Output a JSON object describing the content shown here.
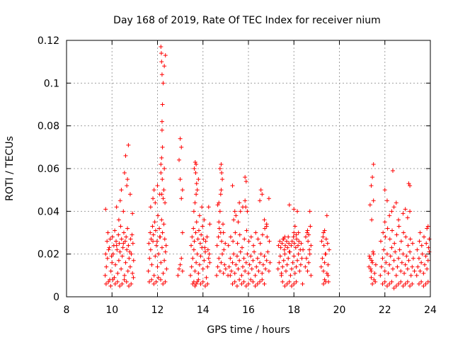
{
  "chart_data": {
    "type": "scatter",
    "title": "Day 168 of 2019, Rate Of TEC Index for receiver nium",
    "xlabel": "GPS time / hours",
    "ylabel": "ROTI / TECUs",
    "xlim": [
      8,
      24
    ],
    "ylim": [
      0,
      0.12
    ],
    "xticks": [
      8,
      10,
      12,
      14,
      16,
      18,
      20,
      22,
      24
    ],
    "yticks": [
      0,
      0.02,
      0.04,
      0.06,
      0.08,
      0.1,
      0.12
    ],
    "ytick_labels": [
      "0",
      "0.02",
      "0.04",
      "0.06",
      "0.08",
      "0.1",
      "0.12"
    ],
    "grid": true,
    "marker": "+",
    "color": "#ff0000",
    "series": [
      {
        "name": "ROTI",
        "x": [
          9.7,
          9.75,
          9.8,
          9.85,
          9.9,
          9.95,
          10.0,
          10.05,
          10.1,
          10.15,
          10.2,
          10.25,
          10.3,
          10.35,
          10.4,
          10.45,
          10.5,
          10.55,
          10.6,
          10.65,
          10.7,
          10.75,
          10.8,
          10.85,
          10.9,
          10.95,
          9.72,
          9.78,
          9.82,
          9.88,
          9.92,
          9.98,
          10.02,
          10.08,
          10.12,
          10.18,
          10.22,
          10.28,
          10.32,
          10.38,
          10.42,
          10.48,
          10.52,
          10.58,
          10.62,
          10.68,
          10.72,
          10.78,
          10.82,
          10.88,
          10.92,
          9.74,
          9.84,
          9.94,
          10.04,
          10.14,
          10.24,
          10.34,
          10.44,
          10.54,
          10.64,
          10.74,
          10.84,
          10.94,
          10.36,
          10.41,
          10.55,
          10.6,
          10.68,
          10.72,
          10.8,
          10.65,
          10.5,
          10.3,
          10.2,
          9.72,
          10.9,
          11.6,
          11.65,
          11.7,
          11.75,
          11.8,
          11.85,
          11.9,
          11.95,
          12.0,
          12.05,
          12.1,
          12.15,
          12.2,
          12.25,
          12.3,
          12.35,
          12.4,
          11.62,
          11.68,
          11.72,
          11.78,
          11.82,
          11.88,
          11.92,
          11.98,
          12.02,
          12.08,
          12.12,
          12.18,
          12.22,
          12.28,
          12.32,
          12.38,
          11.64,
          11.74,
          11.84,
          11.94,
          12.04,
          12.14,
          12.24,
          12.34,
          11.7,
          11.8,
          11.85,
          11.9,
          12.0,
          12.1,
          12.15,
          12.18,
          12.2,
          12.22,
          12.25,
          12.3,
          12.35,
          12.15,
          12.17,
          12.18,
          12.2,
          12.2,
          12.22,
          12.15,
          12.19,
          12.21,
          12.3,
          12.25,
          12.28,
          12.33,
          12.9,
          12.95,
          13.0,
          13.05,
          13.1,
          13.0,
          13.05,
          12.95,
          13.1,
          13.0,
          13.05,
          13.1,
          13.45,
          13.5,
          13.55,
          13.6,
          13.65,
          13.7,
          13.75,
          13.8,
          13.85,
          13.9,
          13.95,
          14.0,
          14.05,
          14.1,
          14.15,
          14.2,
          14.25,
          14.3,
          13.48,
          13.52,
          13.58,
          13.62,
          13.68,
          13.72,
          13.78,
          13.82,
          13.88,
          13.92,
          13.98,
          14.02,
          14.08,
          14.12,
          14.18,
          14.22,
          14.28,
          13.55,
          13.6,
          13.65,
          13.7,
          13.75,
          13.8,
          13.9,
          14.0,
          14.1,
          14.2,
          13.6,
          13.65,
          13.7,
          13.75,
          13.85,
          13.95,
          14.05,
          13.62,
          13.7,
          13.8,
          13.66,
          13.68,
          13.72,
          14.3,
          14.25,
          14.6,
          14.65,
          14.7,
          14.75,
          14.8,
          14.85,
          14.9,
          14.95,
          15.0,
          14.62,
          14.68,
          14.72,
          14.78,
          14.82,
          14.88,
          14.92,
          14.98,
          14.7,
          14.75,
          14.8,
          14.85,
          14.75,
          14.8,
          14.82,
          14.78,
          14.7,
          14.65,
          14.9,
          15.1,
          15.15,
          15.2,
          15.25,
          15.3,
          15.35,
          15.4,
          15.45,
          15.5,
          15.55,
          15.6,
          15.65,
          15.7,
          15.75,
          15.8,
          15.85,
          15.9,
          15.95,
          16.0,
          16.05,
          16.1,
          16.15,
          16.2,
          16.25,
          16.3,
          16.35,
          16.4,
          16.45,
          16.5,
          16.55,
          16.6,
          16.65,
          16.7,
          16.75,
          16.8,
          16.85,
          16.9,
          16.95,
          15.12,
          15.22,
          15.32,
          15.42,
          15.52,
          15.62,
          15.72,
          15.82,
          15.92,
          16.02,
          16.12,
          16.22,
          16.32,
          16.42,
          16.52,
          16.62,
          16.72,
          16.82,
          16.92,
          15.3,
          15.4,
          15.5,
          15.6,
          15.7,
          15.8,
          15.9,
          16.0,
          16.1,
          16.2,
          16.3,
          16.4,
          16.5,
          16.6,
          16.7,
          16.8,
          15.35,
          15.45,
          15.55,
          15.65,
          15.75,
          15.85,
          15.9,
          15.85,
          15.88,
          15.95,
          16.5,
          16.55,
          16.6,
          16.7,
          16.8,
          16.9,
          15.3,
          15.4,
          15.6,
          15.2,
          17.3,
          17.35,
          17.4,
          17.45,
          17.5,
          17.55,
          17.6,
          17.65,
          17.7,
          17.75,
          17.8,
          17.85,
          17.9,
          17.95,
          18.0,
          18.05,
          18.1,
          18.15,
          18.2,
          18.25,
          18.3,
          18.35,
          18.4,
          17.32,
          17.38,
          17.42,
          17.48,
          17.52,
          17.58,
          17.62,
          17.68,
          17.72,
          17.78,
          17.82,
          17.88,
          17.92,
          17.98,
          18.02,
          18.08,
          18.12,
          18.18,
          18.22,
          18.28,
          18.32,
          18.38,
          17.5,
          17.6,
          17.7,
          17.8,
          17.9,
          18.0,
          18.1,
          18.2,
          17.6,
          17.8,
          18.0,
          18.05,
          18.1,
          18.15,
          18.0,
          17.75,
          17.55,
          17.45,
          18.5,
          18.55,
          18.6,
          18.65,
          18.7,
          18.75,
          18.52,
          18.58,
          18.62,
          18.68,
          18.72,
          18.6,
          18.65,
          18.7,
          18.75,
          19.2,
          19.25,
          19.3,
          19.35,
          19.4,
          19.45,
          19.5,
          19.55,
          19.22,
          19.28,
          19.32,
          19.38,
          19.42,
          19.48,
          19.52,
          19.3,
          19.35,
          19.4,
          19.45,
          19.35,
          19.3,
          19.5,
          21.3,
          21.35,
          21.4,
          21.45,
          21.5,
          21.55,
          21.6,
          21.32,
          21.38,
          21.42,
          21.48,
          21.52,
          21.58,
          21.4,
          21.45,
          21.5,
          21.35,
          21.4,
          21.45,
          21.5,
          21.42,
          21.8,
          21.85,
          21.9,
          21.95,
          22.0,
          22.05,
          22.1,
          22.15,
          22.2,
          22.25,
          22.3,
          22.35,
          22.4,
          22.45,
          22.5,
          22.55,
          22.6,
          22.65,
          22.7,
          22.75,
          22.8,
          22.85,
          22.9,
          22.95,
          23.0,
          23.05,
          23.1,
          23.15,
          23.2,
          23.25,
          23.3,
          21.82,
          21.92,
          22.02,
          22.12,
          22.22,
          22.32,
          22.42,
          22.52,
          22.62,
          22.72,
          22.82,
          22.92,
          23.02,
          23.12,
          23.22,
          21.9,
          22.0,
          22.1,
          22.2,
          22.3,
          22.4,
          22.5,
          22.6,
          22.7,
          22.8,
          22.9,
          23.0,
          23.1,
          23.2,
          22.0,
          22.2,
          22.3,
          22.4,
          22.5,
          22.6,
          22.8,
          22.9,
          23.0,
          23.1,
          23.05,
          23.1,
          22.35,
          22.0,
          22.1,
          23.4,
          23.45,
          23.5,
          23.55,
          23.6,
          23.65,
          23.7,
          23.75,
          23.8,
          23.85,
          23.9,
          23.95,
          23.42,
          23.52,
          23.62,
          23.72,
          23.82,
          23.92,
          23.5,
          23.6,
          23.7,
          23.8,
          23.9,
          23.85,
          23.9,
          23.95,
          23.55
        ],
        "y": [
          0.01,
          0.014,
          0.018,
          0.022,
          0.008,
          0.012,
          0.016,
          0.02,
          0.009,
          0.015,
          0.024,
          0.011,
          0.017,
          0.021,
          0.013,
          0.019,
          0.025,
          0.01,
          0.016,
          0.022,
          0.012,
          0.018,
          0.014,
          0.02,
          0.011,
          0.017,
          0.02,
          0.026,
          0.03,
          0.023,
          0.027,
          0.019,
          0.028,
          0.024,
          0.031,
          0.026,
          0.022,
          0.029,
          0.025,
          0.033,
          0.027,
          0.023,
          0.03,
          0.026,
          0.028,
          0.032,
          0.024,
          0.021,
          0.027,
          0.029,
          0.025,
          0.006,
          0.007,
          0.005,
          0.008,
          0.006,
          0.007,
          0.005,
          0.006,
          0.008,
          0.007,
          0.005,
          0.006,
          0.009,
          0.045,
          0.05,
          0.058,
          0.066,
          0.055,
          0.071,
          0.048,
          0.052,
          0.04,
          0.036,
          0.042,
          0.041,
          0.039,
          0.012,
          0.018,
          0.022,
          0.015,
          0.026,
          0.01,
          0.019,
          0.024,
          0.014,
          0.02,
          0.028,
          0.016,
          0.023,
          0.011,
          0.017,
          0.021,
          0.013,
          0.025,
          0.03,
          0.027,
          0.033,
          0.029,
          0.035,
          0.031,
          0.026,
          0.038,
          0.032,
          0.028,
          0.036,
          0.03,
          0.034,
          0.027,
          0.024,
          0.007,
          0.008,
          0.006,
          0.007,
          0.009,
          0.008,
          0.006,
          0.007,
          0.042,
          0.046,
          0.05,
          0.044,
          0.052,
          0.048,
          0.058,
          0.065,
          0.082,
          0.09,
          0.1,
          0.108,
          0.113,
          0.117,
          0.114,
          0.11,
          0.104,
          0.078,
          0.07,
          0.062,
          0.048,
          0.055,
          0.06,
          0.046,
          0.05,
          0.044,
          0.01,
          0.013,
          0.015,
          0.018,
          0.012,
          0.055,
          0.046,
          0.064,
          0.05,
          0.074,
          0.07,
          0.03,
          0.01,
          0.014,
          0.018,
          0.022,
          0.012,
          0.016,
          0.02,
          0.011,
          0.015,
          0.019,
          0.023,
          0.013,
          0.017,
          0.021,
          0.009,
          0.014,
          0.018,
          0.016,
          0.024,
          0.028,
          0.032,
          0.026,
          0.03,
          0.035,
          0.027,
          0.031,
          0.025,
          0.029,
          0.033,
          0.027,
          0.023,
          0.026,
          0.028,
          0.022,
          0.02,
          0.006,
          0.007,
          0.005,
          0.006,
          0.007,
          0.008,
          0.006,
          0.007,
          0.005,
          0.006,
          0.04,
          0.044,
          0.048,
          0.05,
          0.038,
          0.042,
          0.036,
          0.06,
          0.062,
          0.055,
          0.063,
          0.058,
          0.053,
          0.034,
          0.042,
          0.01,
          0.014,
          0.018,
          0.012,
          0.016,
          0.02,
          0.011,
          0.015,
          0.013,
          0.024,
          0.028,
          0.032,
          0.03,
          0.026,
          0.034,
          0.022,
          0.025,
          0.035,
          0.04,
          0.05,
          0.055,
          0.06,
          0.062,
          0.058,
          0.048,
          0.044,
          0.043,
          0.03,
          0.01,
          0.014,
          0.018,
          0.012,
          0.016,
          0.02,
          0.011,
          0.015,
          0.019,
          0.013,
          0.017,
          0.021,
          0.01,
          0.014,
          0.018,
          0.012,
          0.016,
          0.02,
          0.011,
          0.015,
          0.019,
          0.013,
          0.017,
          0.021,
          0.01,
          0.014,
          0.018,
          0.012,
          0.016,
          0.02,
          0.011,
          0.015,
          0.019,
          0.013,
          0.017,
          0.021,
          0.012,
          0.016,
          0.024,
          0.028,
          0.026,
          0.03,
          0.025,
          0.029,
          0.023,
          0.027,
          0.031,
          0.026,
          0.028,
          0.024,
          0.03,
          0.027,
          0.025,
          0.029,
          0.032,
          0.028,
          0.026,
          0.006,
          0.007,
          0.005,
          0.008,
          0.006,
          0.007,
          0.005,
          0.006,
          0.008,
          0.007,
          0.005,
          0.006,
          0.007,
          0.008,
          0.006,
          0.033,
          0.036,
          0.038,
          0.035,
          0.04,
          0.042,
          0.045,
          0.054,
          0.056,
          0.042,
          0.04,
          0.045,
          0.05,
          0.048,
          0.036,
          0.034,
          0.046,
          0.052,
          0.04,
          0.044,
          0.01,
          0.013,
          0.016,
          0.019,
          0.011,
          0.014,
          0.017,
          0.02,
          0.012,
          0.015,
          0.018,
          0.021,
          0.01,
          0.013,
          0.016,
          0.019,
          0.011,
          0.014,
          0.017,
          0.02,
          0.012,
          0.015,
          0.018,
          0.022,
          0.024,
          0.026,
          0.023,
          0.025,
          0.027,
          0.022,
          0.024,
          0.026,
          0.023,
          0.025,
          0.021,
          0.024,
          0.026,
          0.028,
          0.025,
          0.023,
          0.027,
          0.024,
          0.026,
          0.022,
          0.025,
          0.006,
          0.007,
          0.005,
          0.006,
          0.007,
          0.005,
          0.006,
          0.007,
          0.03,
          0.028,
          0.043,
          0.041,
          0.033,
          0.029,
          0.04,
          0.03,
          0.028,
          0.027,
          0.01,
          0.014,
          0.018,
          0.012,
          0.016,
          0.02,
          0.024,
          0.028,
          0.03,
          0.026,
          0.022,
          0.033,
          0.031,
          0.029,
          0.04,
          0.01,
          0.014,
          0.018,
          0.012,
          0.016,
          0.02,
          0.011,
          0.015,
          0.022,
          0.026,
          0.028,
          0.024,
          0.02,
          0.027,
          0.025,
          0.007,
          0.006,
          0.008,
          0.007,
          0.038,
          0.031,
          0.03,
          0.01,
          0.014,
          0.018,
          0.012,
          0.016,
          0.02,
          0.011,
          0.015,
          0.019,
          0.013,
          0.017,
          0.021,
          0.008,
          0.007,
          0.009,
          0.006,
          0.045,
          0.043,
          0.052,
          0.056,
          0.062,
          0.036,
          0.01,
          0.014,
          0.018,
          0.022,
          0.012,
          0.016,
          0.02,
          0.011,
          0.015,
          0.019,
          0.023,
          0.013,
          0.017,
          0.021,
          0.01,
          0.014,
          0.018,
          0.022,
          0.012,
          0.016,
          0.02,
          0.011,
          0.015,
          0.019,
          0.013,
          0.017,
          0.021,
          0.01,
          0.014,
          0.018,
          0.012,
          0.026,
          0.03,
          0.028,
          0.032,
          0.027,
          0.031,
          0.025,
          0.029,
          0.033,
          0.026,
          0.03,
          0.028,
          0.024,
          0.027,
          0.025,
          0.006,
          0.007,
          0.005,
          0.006,
          0.007,
          0.004,
          0.005,
          0.006,
          0.007,
          0.005,
          0.006,
          0.007,
          0.005,
          0.006,
          0.035,
          0.038,
          0.04,
          0.042,
          0.044,
          0.036,
          0.039,
          0.041,
          0.037,
          0.04,
          0.053,
          0.052,
          0.059,
          0.05,
          0.045,
          0.01,
          0.014,
          0.018,
          0.012,
          0.016,
          0.02,
          0.011,
          0.015,
          0.019,
          0.013,
          0.017,
          0.021,
          0.022,
          0.026,
          0.024,
          0.028,
          0.025,
          0.023,
          0.006,
          0.007,
          0.005,
          0.006,
          0.007,
          0.032,
          0.033,
          0.027,
          0.03
        ]
      }
    ]
  }
}
